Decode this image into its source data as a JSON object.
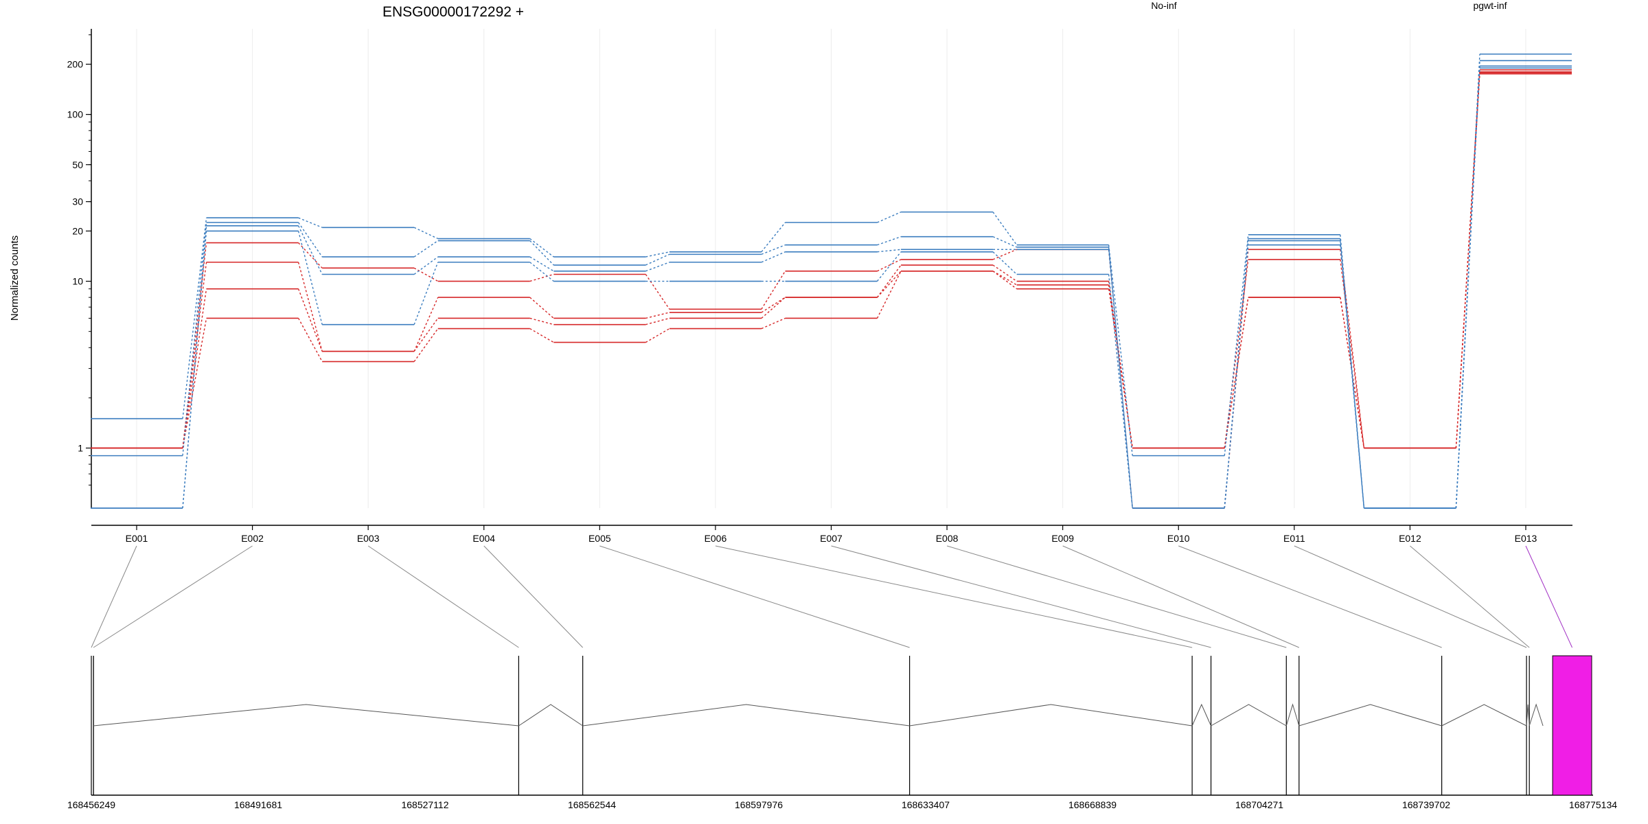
{
  "chart_data": {
    "type": "line",
    "title": "ENSG00000172292 +",
    "ylabel": "Normalized counts",
    "yscale": "log",
    "ylim": [
      0.6,
      260
    ],
    "yticks": [
      1,
      10,
      20,
      30,
      50,
      100,
      200
    ],
    "categories": [
      "E001",
      "E002",
      "E003",
      "E004",
      "E005",
      "E006",
      "E007",
      "E008",
      "E009",
      "E010",
      "E011",
      "E012",
      "E013"
    ],
    "legend": [
      {
        "name": "No-inf",
        "color": "#d62728"
      },
      {
        "name": "pgwt-inf",
        "color": "#3b7dbf"
      }
    ],
    "series": [
      {
        "group": "No-inf",
        "color": "#d62728",
        "values": [
          1.0,
          17.0,
          12.0,
          10.0,
          11.0,
          6.8,
          11.5,
          13.5,
          15.5,
          0.0,
          15.5,
          1.0,
          185
        ]
      },
      {
        "group": "No-inf",
        "color": "#d62728",
        "values": [
          1.0,
          13.0,
          3.8,
          8.0,
          6.0,
          6.5,
          8.0,
          12.5,
          10.0,
          1.0,
          13.5,
          1.0,
          180
        ]
      },
      {
        "group": "No-inf",
        "color": "#d62728",
        "values": [
          1.0,
          9.0,
          3.8,
          6.0,
          5.5,
          6.0,
          8.0,
          11.5,
          9.5,
          1.0,
          8.0,
          1.0,
          178
        ]
      },
      {
        "group": "No-inf",
        "color": "#d62728",
        "values": [
          1.0,
          6.0,
          3.3,
          5.2,
          4.3,
          5.2,
          6.0,
          11.5,
          9.0,
          1.0,
          8.0,
          1.0,
          175
        ]
      },
      {
        "group": "pgwt-inf",
        "color": "#3b7dbf",
        "values": [
          1.5,
          24.0,
          21.0,
          18.0,
          14.0,
          15.0,
          22.5,
          26.0,
          16.5,
          0.9,
          19.0,
          0.0,
          230
        ]
      },
      {
        "group": "pgwt-inf",
        "color": "#3b7dbf",
        "values": [
          0.9,
          22.5,
          14.0,
          17.5,
          12.5,
          14.5,
          16.5,
          18.5,
          16.0,
          0.0,
          18.0,
          0.0,
          210
        ]
      },
      {
        "group": "pgwt-inf",
        "color": "#3b7dbf",
        "values": [
          0.0,
          21.5,
          11.0,
          14.0,
          11.5,
          13.0,
          15.0,
          15.5,
          15.5,
          0.0,
          17.5,
          0.0,
          195
        ]
      },
      {
        "group": "pgwt-inf",
        "color": "#3b7dbf",
        "values": [
          0.0,
          20.0,
          5.5,
          13.0,
          10.0,
          10.0,
          10.0,
          15.0,
          11.0,
          0.0,
          16.5,
          0.0,
          190
        ]
      }
    ],
    "gene_model": {
      "coordinate_labels": [
        "168456249",
        "168491681",
        "168527112",
        "168562544",
        "168597976",
        "168633407",
        "168668839",
        "168704271",
        "168739702",
        "168775134"
      ],
      "coordinate_range": [
        168456249,
        168775134
      ],
      "exons": [
        {
          "id": "E001",
          "start": 168456249,
          "end": 168456700
        },
        {
          "id": "E002",
          "start": 168456700,
          "end": 168547000
        },
        {
          "id": "E003",
          "start": 168547000,
          "end": 168560600
        },
        {
          "id": "E004",
          "start": 168560600,
          "end": 168630000
        },
        {
          "id": "E005",
          "start": 168630000,
          "end": 168690000
        },
        {
          "id": "E006",
          "start": 168690000,
          "end": 168694000
        },
        {
          "id": "E007",
          "start": 168694000,
          "end": 168710000
        },
        {
          "id": "E008",
          "start": 168710000,
          "end": 168712700
        },
        {
          "id": "E009",
          "start": 168712700,
          "end": 168743000
        },
        {
          "id": "E010",
          "start": 168743000,
          "end": 168761000
        },
        {
          "id": "E011",
          "start": 168761000,
          "end": 168761600
        },
        {
          "id": "E012",
          "start": 168761600,
          "end": 168764500
        },
        {
          "id": "E013",
          "start": 168764500,
          "end": 168775134
        }
      ],
      "highlight_color": "#f01ee6"
    }
  }
}
